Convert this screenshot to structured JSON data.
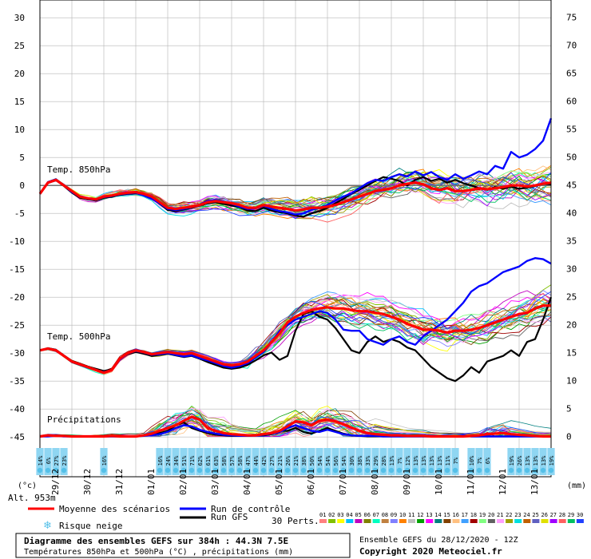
{
  "chart_data": {
    "type": "line",
    "left_axis": {
      "unit_label": "(°c)",
      "ticks": [
        30,
        25,
        20,
        15,
        10,
        5,
        0,
        -5,
        -10,
        -15,
        -20,
        -25,
        -30,
        -35,
        -40,
        -45
      ],
      "range": [
        -45,
        30
      ]
    },
    "right_axis": {
      "unit_label": "(mm)",
      "ticks": [
        75,
        70,
        65,
        60,
        55,
        50,
        45,
        40,
        35,
        30,
        25,
        20,
        15,
        10,
        5,
        0
      ],
      "range": [
        0,
        75
      ]
    },
    "date_labels": [
      "29/12",
      "30/12",
      "31/12",
      "01/01",
      "02/01",
      "03/01",
      "04/01",
      "05/01",
      "06/01",
      "07/01",
      "08/01",
      "09/01",
      "10/01",
      "11/01",
      "12/01",
      "13/01"
    ],
    "series_labels": {
      "t850": "Temp. 850hPa",
      "t500": "Temp. 500hPa",
      "precip": "Précipitations"
    },
    "time_step_hours": 6,
    "t850": {
      "mean": [
        -1.5,
        0.5,
        1.0,
        0.0,
        -1.0,
        -2.0,
        -2.3,
        -2.5,
        -2.0,
        -1.8,
        -1.5,
        -1.3,
        -1.2,
        -1.5,
        -2.0,
        -3.0,
        -4.0,
        -4.2,
        -4.0,
        -3.8,
        -3.5,
        -3.0,
        -2.8,
        -3.0,
        -3.2,
        -3.5,
        -4.0,
        -4.0,
        -3.5,
        -3.8,
        -4.0,
        -4.2,
        -4.5,
        -4.3,
        -4.0,
        -4.0,
        -3.8,
        -3.5,
        -3.0,
        -2.5,
        -2.0,
        -1.5,
        -1.0,
        -0.8,
        -0.5,
        0.0,
        0.3,
        0.5,
        0.2,
        -0.5,
        -0.8,
        -0.5,
        -1.0,
        -1.0,
        -0.8,
        -0.5,
        -0.7,
        -0.5,
        -0.3,
        0.0,
        0.0,
        -0.2,
        0.0,
        0.3,
        0.5
      ],
      "control": [
        -1.5,
        0.6,
        1.1,
        0.0,
        -1.2,
        -2.0,
        -2.4,
        -2.6,
        -2.1,
        -1.9,
        -1.6,
        -1.4,
        -1.3,
        -1.8,
        -2.4,
        -3.2,
        -4.2,
        -4.4,
        -4.2,
        -3.9,
        -3.4,
        -2.8,
        -2.6,
        -2.9,
        -3.3,
        -3.8,
        -4.2,
        -4.1,
        -3.6,
        -4.2,
        -4.6,
        -4.8,
        -5.2,
        -5.0,
        -4.4,
        -4.0,
        -3.5,
        -2.7,
        -2.0,
        -1.4,
        -0.5,
        0.4,
        1.0,
        0.8,
        1.5,
        2.0,
        1.6,
        2.5,
        1.8,
        2.4,
        1.5,
        1.0,
        2.0,
        1.2,
        1.8,
        2.5,
        2.0,
        3.5,
        3.0,
        6.0,
        5.0,
        5.5,
        6.5,
        8.0,
        12.0
      ],
      "gfs": [
        -1.5,
        0.4,
        1.0,
        -0.1,
        -1.3,
        -2.2,
        -2.5,
        -2.7,
        -2.2,
        -2.0,
        -1.7,
        -1.5,
        -1.4,
        -1.7,
        -2.3,
        -3.3,
        -4.4,
        -4.6,
        -4.3,
        -4.0,
        -3.6,
        -3.2,
        -3.0,
        -3.3,
        -3.6,
        -3.9,
        -4.5,
        -4.6,
        -4.0,
        -4.5,
        -4.8,
        -5.0,
        -5.4,
        -5.6,
        -5.0,
        -4.6,
        -4.0,
        -3.2,
        -2.4,
        -1.5,
        -0.8,
        0.0,
        0.8,
        1.5,
        1.2,
        0.8,
        0.0,
        1.0,
        1.5,
        0.8,
        1.2,
        0.5,
        1.0,
        0.4,
        0.0,
        -0.5,
        -0.8,
        -0.3,
        -0.6,
        -0.2,
        -0.6,
        -0.4,
        -0.1,
        0.3,
        0.2
      ]
    },
    "t500": {
      "mean": [
        -29.5,
        -29.2,
        -29.5,
        -30.5,
        -31.5,
        -32.0,
        -32.5,
        -33.0,
        -33.5,
        -33.0,
        -31.0,
        -30.0,
        -29.5,
        -29.8,
        -30.2,
        -30.0,
        -29.8,
        -30.0,
        -30.2,
        -30.0,
        -30.5,
        -31.0,
        -31.5,
        -32.0,
        -32.2,
        -32.0,
        -31.5,
        -30.5,
        -29.5,
        -28.0,
        -26.5,
        -24.5,
        -23.5,
        -22.8,
        -22.3,
        -22.0,
        -21.8,
        -22.0,
        -22.0,
        -22.3,
        -22.5,
        -22.5,
        -22.8,
        -23.0,
        -23.5,
        -24.0,
        -24.8,
        -25.3,
        -25.8,
        -25.8,
        -26.0,
        -26.3,
        -26.0,
        -26.0,
        -25.8,
        -25.5,
        -25.0,
        -24.5,
        -24.0,
        -23.5,
        -23.0,
        -22.8,
        -22.0,
        -21.5,
        -21.5
      ],
      "control": [
        -29.5,
        -29.2,
        -29.6,
        -30.5,
        -31.6,
        -32.1,
        -32.6,
        -33.0,
        -33.4,
        -33.0,
        -31.2,
        -30.1,
        -29.6,
        -29.9,
        -30.3,
        -30.2,
        -30.0,
        -30.3,
        -30.6,
        -30.4,
        -30.9,
        -31.3,
        -31.8,
        -32.3,
        -32.6,
        -32.3,
        -31.8,
        -30.8,
        -29.8,
        -28.0,
        -26.0,
        -25.0,
        -24.0,
        -23.5,
        -23.0,
        -22.5,
        -22.8,
        -24.0,
        -25.8,
        -26.0,
        -26.0,
        -27.5,
        -28.0,
        -28.5,
        -27.5,
        -27.0,
        -28.0,
        -28.5,
        -27.0,
        -26.0,
        -25.0,
        -24.0,
        -22.5,
        -21.0,
        -19.0,
        -18.0,
        -17.5,
        -16.5,
        -15.5,
        -15.0,
        -14.5,
        -13.5,
        -13.0,
        -13.2,
        -14.0
      ],
      "gfs": [
        -29.5,
        -29.1,
        -29.4,
        -30.4,
        -31.4,
        -31.9,
        -32.4,
        -32.8,
        -33.2,
        -32.9,
        -31.1,
        -30.2,
        -29.8,
        -30.1,
        -30.5,
        -30.3,
        -30.1,
        -30.4,
        -30.7,
        -30.5,
        -31.0,
        -31.6,
        -32.1,
        -32.6,
        -32.8,
        -32.6,
        -32.1,
        -31.3,
        -30.4,
        -29.9,
        -31.2,
        -30.5,
        -26.0,
        -23.0,
        -22.5,
        -23.5,
        -24.0,
        -25.5,
        -27.5,
        -29.5,
        -30.0,
        -28.0,
        -27.0,
        -28.0,
        -27.5,
        -28.0,
        -29.0,
        -29.5,
        -31.0,
        -32.5,
        -33.5,
        -34.5,
        -35.0,
        -34.0,
        -32.5,
        -33.5,
        -31.5,
        -31.0,
        -30.5,
        -29.5,
        -30.5,
        -28.0,
        -27.5,
        -24.0,
        -20.0
      ]
    },
    "precip": {
      "mean": [
        0.0,
        0.2,
        0.1,
        0.1,
        0.0,
        0.0,
        0.0,
        0.0,
        0.0,
        0.1,
        0.0,
        0.0,
        0.0,
        0.2,
        0.5,
        1.0,
        1.5,
        2.0,
        2.8,
        3.5,
        3.0,
        1.5,
        1.0,
        0.6,
        0.4,
        0.3,
        0.2,
        0.2,
        0.4,
        0.6,
        1.0,
        1.8,
        2.7,
        2.5,
        2.0,
        2.8,
        3.0,
        2.7,
        2.2,
        1.6,
        1.0,
        0.6,
        0.4,
        0.3,
        0.2,
        0.2,
        0.1,
        0.1,
        0.1,
        0.0,
        0.0,
        0.0,
        0.0,
        0.0,
        0.1,
        0.2,
        0.4,
        0.5,
        0.6,
        0.4,
        0.3,
        0.2,
        0.1,
        0.0,
        0.0
      ],
      "control": [
        0.0,
        0.0,
        0.1,
        0.0,
        0.0,
        0.0,
        0.0,
        0.0,
        0.0,
        0.0,
        0.0,
        0.0,
        0.0,
        0.1,
        0.2,
        0.4,
        0.8,
        1.5,
        2.0,
        1.8,
        1.2,
        0.8,
        0.5,
        0.3,
        0.2,
        0.1,
        0.1,
        0.2,
        0.3,
        0.5,
        0.8,
        1.5,
        2.0,
        1.5,
        1.0,
        0.8,
        1.2,
        0.8,
        0.4,
        0.2,
        0.1,
        0.1,
        0.1,
        0.0,
        0.0,
        0.0,
        0.0,
        0.0,
        0.0,
        0.0,
        0.0,
        0.0,
        0.0,
        0.2,
        0.0,
        0.0,
        0.0,
        0.0,
        0.0,
        0.0,
        0.0,
        0.0,
        0.0,
        0.0,
        0.0
      ],
      "gfs": [
        0.0,
        0.1,
        0.2,
        0.1,
        0.0,
        0.0,
        0.0,
        0.0,
        0.0,
        0.0,
        0.0,
        0.0,
        0.0,
        0.2,
        0.4,
        0.6,
        1.0,
        2.0,
        2.5,
        1.5,
        1.0,
        0.6,
        0.3,
        0.2,
        0.1,
        0.1,
        0.1,
        0.2,
        0.2,
        0.4,
        1.0,
        1.0,
        1.5,
        0.8,
        0.5,
        1.0,
        1.5,
        1.0,
        0.5,
        0.2,
        0.1,
        0.0,
        0.0,
        0.0,
        0.0,
        0.0,
        0.0,
        0.0,
        0.0,
        0.0,
        0.0,
        0.0,
        0.0,
        0.0,
        0.0,
        0.0,
        0.0,
        0.0,
        0.0,
        0.0,
        0.0,
        0.0,
        0.0,
        0.0,
        0.0
      ]
    },
    "snow_risk": [
      14,
      6,
      27,
      23,
      null,
      null,
      null,
      null,
      16,
      null,
      null,
      null,
      null,
      null,
      null,
      16,
      24,
      34,
      51,
      71,
      62,
      61,
      63,
      58,
      57,
      58,
      47,
      44,
      42,
      27,
      21,
      26,
      21,
      38,
      50,
      54,
      54,
      56,
      54,
      30,
      38,
      33,
      29,
      28,
      13,
      7,
      12,
      13,
      13,
      13,
      13,
      11,
      7,
      null,
      10,
      7,
      6,
      null,
      null,
      19,
      26,
      13,
      13,
      13,
      19
    ],
    "legend": [
      {
        "label": "Moyenne des scénarios",
        "color": "#ff0000"
      },
      {
        "label": "Run de contrôle",
        "color": "#0000ff"
      },
      {
        "label": "Run GFS",
        "color": "#000000"
      },
      {
        "label": "Risque neige",
        "color": "#55c0e8"
      }
    ],
    "perts_label": "30 Perts.",
    "pert_numbers": [
      "01",
      "02",
      "03",
      "04",
      "05",
      "06",
      "07",
      "08",
      "09",
      "10",
      "11",
      "12",
      "13",
      "14",
      "15",
      "16",
      "17",
      "18",
      "19",
      "20",
      "21",
      "22",
      "23",
      "24",
      "25",
      "26",
      "27",
      "28",
      "29",
      "30"
    ],
    "pert_colors": [
      "#ff8080",
      "#80c000",
      "#ffff00",
      "#00c0ff",
      "#c000c0",
      "#808000",
      "#00ffc0",
      "#c08040",
      "#8080ff",
      "#ff8000",
      "#c0c0c0",
      "#00a000",
      "#ff00ff",
      "#008080",
      "#804000",
      "#ffc080",
      "#40a0ff",
      "#a00000",
      "#80ff80",
      "#606060",
      "#ffa0ff",
      "#a0a000",
      "#00e0e0",
      "#c06000",
      "#6060c0",
      "#e0e000",
      "#a000ff",
      "#ff6060",
      "#00c060",
      "#2040ff"
    ],
    "alt_label": "Alt. 953m",
    "title": "Diagramme des ensembles GEFS sur 384h : 44.3N 7.5E",
    "subtitle": "Températures 850hPa et 500hPa (°C) , précipitations (mm)",
    "run_info": "Ensemble GEFS du 28/12/2020 - 12Z",
    "copyright": "Copyright 2020 Meteociel.fr"
  }
}
